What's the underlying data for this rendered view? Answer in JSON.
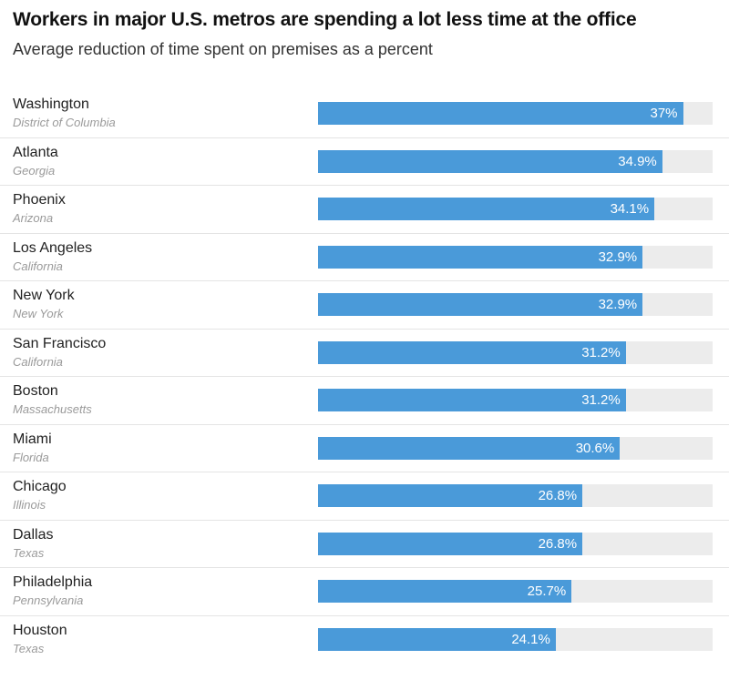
{
  "chart_data": {
    "type": "bar",
    "orientation": "horizontal",
    "title": "Workers in major U.S. metros are spending a lot less time at the office",
    "subtitle": "Average reduction of time spent on premises as a percent",
    "xlim": [
      0,
      40
    ],
    "grid": false,
    "bar_color": "#4a9ad9",
    "track_color": "#ececec",
    "categories": [
      {
        "city": "Washington",
        "state": "District of Columbia",
        "value": 37,
        "label": "37%"
      },
      {
        "city": "Atlanta",
        "state": "Georgia",
        "value": 34.9,
        "label": "34.9%"
      },
      {
        "city": "Phoenix",
        "state": "Arizona",
        "value": 34.1,
        "label": "34.1%"
      },
      {
        "city": "Los Angeles",
        "state": "California",
        "value": 32.9,
        "label": "32.9%"
      },
      {
        "city": "New York",
        "state": "New York",
        "value": 32.9,
        "label": "32.9%"
      },
      {
        "city": "San Francisco",
        "state": "California",
        "value": 31.2,
        "label": "31.2%"
      },
      {
        "city": "Boston",
        "state": "Massachusetts",
        "value": 31.2,
        "label": "31.2%"
      },
      {
        "city": "Miami",
        "state": "Florida",
        "value": 30.6,
        "label": "30.6%"
      },
      {
        "city": "Chicago",
        "state": "Illinois",
        "value": 26.8,
        "label": "26.8%"
      },
      {
        "city": "Dallas",
        "state": "Texas",
        "value": 26.8,
        "label": "26.8%"
      },
      {
        "city": "Philadelphia",
        "state": "Pennsylvania",
        "value": 25.7,
        "label": "25.7%"
      },
      {
        "city": "Houston",
        "state": "Texas",
        "value": 24.1,
        "label": "24.1%"
      }
    ]
  }
}
